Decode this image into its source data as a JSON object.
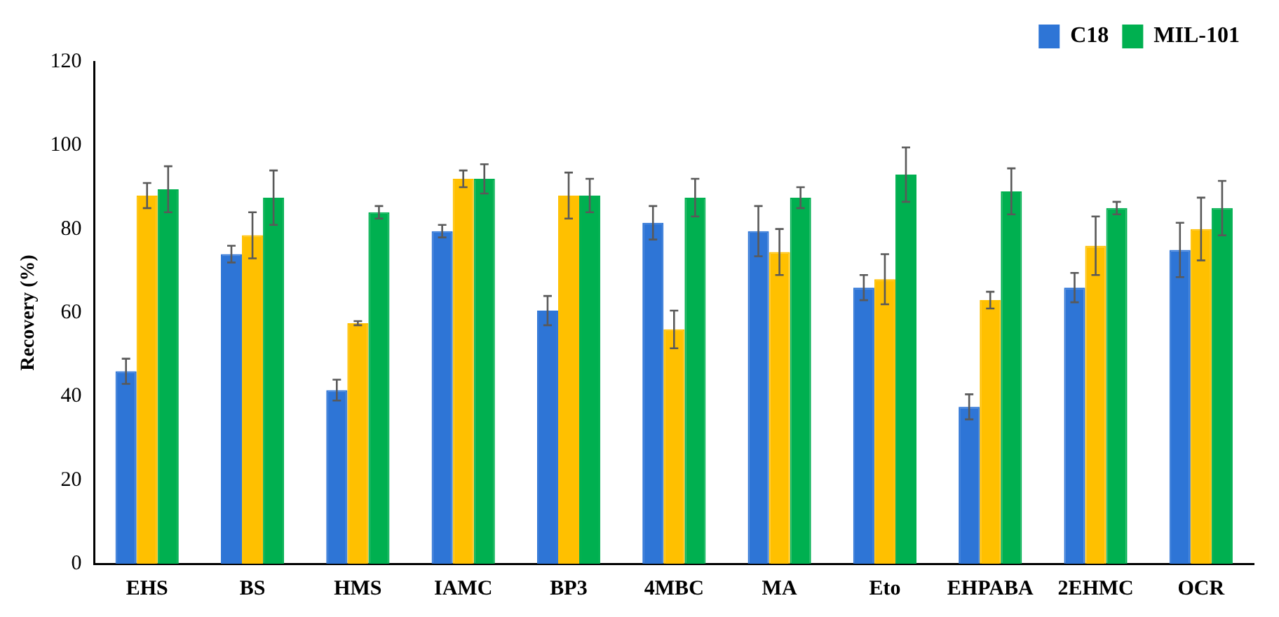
{
  "chart_data": {
    "type": "bar",
    "ylabel": "Recovery (%)",
    "categories": [
      "EHS",
      "BS",
      "HMS",
      "IAMC",
      "BP3",
      "4MBC",
      "MA",
      "Eto",
      "EHPABA",
      "2EHMC",
      "OCR"
    ],
    "series": [
      {
        "name": "C18",
        "color": "#2e75d6",
        "values": [
          46,
          74,
          41.5,
          79.5,
          60.5,
          81.5,
          79.5,
          66,
          37.5,
          66,
          75
        ],
        "errors": [
          3,
          2,
          2.5,
          1.5,
          3.5,
          4,
          6,
          3,
          3,
          3.5,
          6.5
        ]
      },
      {
        "color": "#ffc000",
        "values": [
          88,
          78.5,
          57.5,
          92,
          88,
          56,
          74.5,
          68,
          63,
          76,
          80
        ],
        "errors": [
          3,
          5.5,
          0.5,
          2,
          5.5,
          4.5,
          5.5,
          6,
          2,
          7,
          7.5
        ]
      },
      {
        "name": "MIL-101",
        "color": "#00b050",
        "values": [
          89.5,
          87.5,
          84,
          92,
          88,
          87.5,
          87.5,
          93,
          89,
          85,
          85
        ],
        "errors": [
          5.5,
          6.5,
          1.5,
          3.5,
          4,
          4.5,
          2.5,
          6.5,
          5.5,
          1.5,
          6.5
        ]
      }
    ],
    "ylim": [
      0,
      120
    ],
    "yticks": [
      0,
      20,
      40,
      60,
      80,
      100,
      120
    ],
    "grid": false,
    "legend": "top right"
  }
}
